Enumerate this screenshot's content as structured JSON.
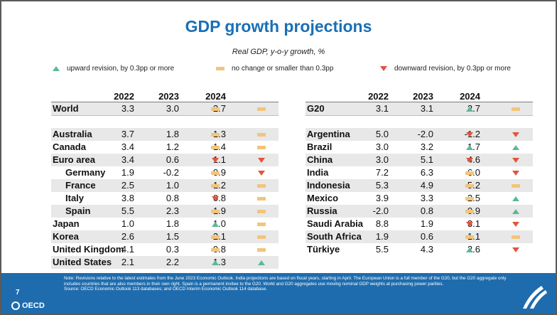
{
  "title": "GDP growth projections",
  "subtitle": "Real GDP, y-o-y growth, %",
  "legend": {
    "up": "upward revision, by 0.3pp or more",
    "flat": "no change or smaller than 0.3pp",
    "down": "downward revision, by 0.3pp or more"
  },
  "colors": {
    "up": "#5bb89a",
    "flat": "#f2c57c",
    "down": "#e2533f",
    "title": "#1a6fb5",
    "footer": "#1e6cae"
  },
  "chart_data": {
    "type": "table",
    "columns": [
      "2022",
      "2023",
      "2024"
    ],
    "left": {
      "top_row": {
        "name": "World",
        "values": [
          "3.3",
          "3.0",
          "2.7"
        ],
        "marks": [
          "flat",
          "flat"
        ]
      },
      "rows": [
        {
          "name": "Australia",
          "values": [
            "3.7",
            "1.8",
            "1.3"
          ],
          "marks": [
            "flat",
            "flat"
          ],
          "indent": false
        },
        {
          "name": "Canada",
          "values": [
            "3.4",
            "1.2",
            "1.4"
          ],
          "marks": [
            "flat",
            "flat"
          ],
          "indent": false
        },
        {
          "name": "Euro area",
          "values": [
            "3.4",
            "0.6",
            "1.1"
          ],
          "marks": [
            "down",
            "down"
          ],
          "indent": false
        },
        {
          "name": "Germany",
          "values": [
            "1.9",
            "-0.2",
            "0.9"
          ],
          "marks": [
            "flat",
            "down"
          ],
          "indent": true
        },
        {
          "name": "France",
          "values": [
            "2.5",
            "1.0",
            "1.2"
          ],
          "marks": [
            "flat",
            "flat"
          ],
          "indent": true
        },
        {
          "name": "Italy",
          "values": [
            "3.8",
            "0.8",
            "0.8"
          ],
          "marks": [
            "down",
            "flat"
          ],
          "indent": true
        },
        {
          "name": "Spain",
          "values": [
            "5.5",
            "2.3",
            "1.9"
          ],
          "marks": [
            "flat",
            "flat"
          ],
          "indent": true
        },
        {
          "name": "Japan",
          "values": [
            "1.0",
            "1.8",
            "1.0"
          ],
          "marks": [
            "up",
            "flat"
          ],
          "indent": false
        },
        {
          "name": "Korea",
          "values": [
            "2.6",
            "1.5",
            "2.1"
          ],
          "marks": [
            "flat",
            "flat"
          ],
          "indent": false
        },
        {
          "name": "United Kingdom",
          "values": [
            "4.1",
            "0.3",
            "0.8"
          ],
          "marks": [
            "flat",
            "flat"
          ],
          "indent": false
        },
        {
          "name": "United States",
          "values": [
            "2.1",
            "2.2",
            "1.3"
          ],
          "marks": [
            "up",
            "up"
          ],
          "indent": false
        }
      ]
    },
    "right": {
      "top_row": {
        "name": "G20",
        "values": [
          "3.1",
          "3.1",
          "2.7"
        ],
        "marks": [
          "up",
          "flat"
        ]
      },
      "rows": [
        {
          "name": "Argentina",
          "values": [
            "5.0",
            "-2.0",
            "-1.2"
          ],
          "marks": [
            "down",
            "down"
          ]
        },
        {
          "name": "Brazil",
          "values": [
            "3.0",
            "3.2",
            "1.7"
          ],
          "marks": [
            "up",
            "up"
          ]
        },
        {
          "name": "China",
          "values": [
            "3.0",
            "5.1",
            "4.6"
          ],
          "marks": [
            "down",
            "down"
          ]
        },
        {
          "name": "India",
          "values": [
            "7.2",
            "6.3",
            "6.0"
          ],
          "marks": [
            "flat",
            "down"
          ]
        },
        {
          "name": "Indonesia",
          "values": [
            "5.3",
            "4.9",
            "5.2"
          ],
          "marks": [
            "flat",
            "flat"
          ]
        },
        {
          "name": "Mexico",
          "values": [
            "3.9",
            "3.3",
            "2.5"
          ],
          "marks": [
            "flat",
            "up"
          ]
        },
        {
          "name": "Russia",
          "values": [
            "-2.0",
            "0.8",
            "0.9"
          ],
          "marks": [
            "flat",
            "up"
          ]
        },
        {
          "name": "Saudi Arabia",
          "values": [
            "8.8",
            "1.9",
            "3.1"
          ],
          "marks": [
            "down",
            "down"
          ]
        },
        {
          "name": "South Africa",
          "values": [
            "1.9",
            "0.6",
            "1.1"
          ],
          "marks": [
            "flat",
            "flat"
          ]
        },
        {
          "name": "Türkiye",
          "values": [
            "5.5",
            "4.3",
            "2.6"
          ],
          "marks": [
            "up",
            "down"
          ]
        }
      ]
    }
  },
  "footer": {
    "page_number": "7",
    "org": "OECD",
    "note": "Note: Revisions relative to the latest estimates from the June 2023 Economic Outlook. India projections are based on fiscal years, starting in April. The European Union is a full member of the G20, but the G20 aggregate only includes countries that are also members in their own right. Spain is a permanent invitee to the G20. World and G20 aggregates use moving nominal GDP weights at purchasing power parities.",
    "source": "Source: OECD Economic Outlook 113 databases; and OECD Interim Economic Outlook 114 database."
  }
}
